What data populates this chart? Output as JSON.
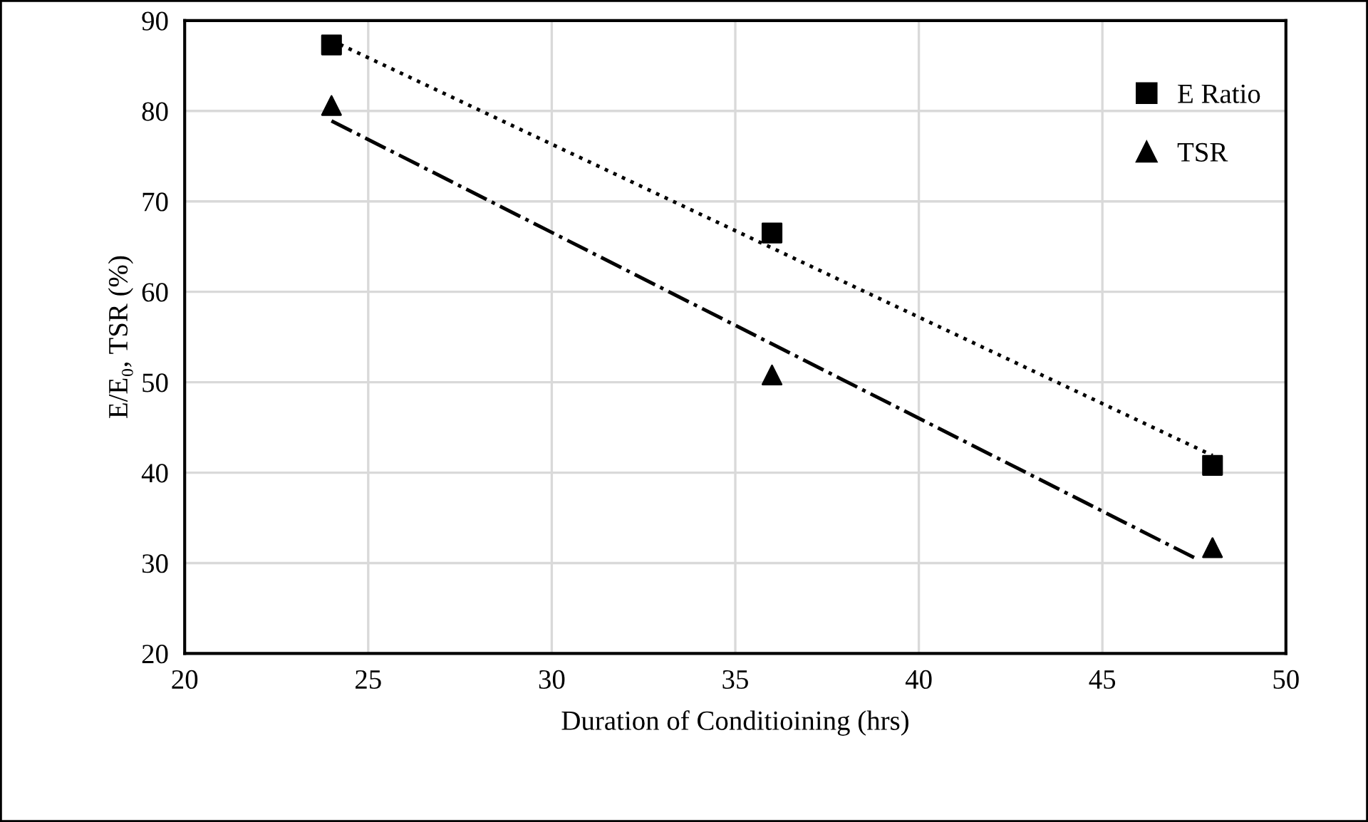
{
  "chart_data": {
    "type": "scatter",
    "xlabel": "Duration of Conditioining (hrs)",
    "ylabel": "E/E₀, TSR (%)",
    "xlim": [
      20,
      50
    ],
    "xticks": [
      20,
      25,
      30,
      35,
      40,
      45,
      50
    ],
    "ylim": [
      20,
      90
    ],
    "yticks": [
      20,
      30,
      40,
      50,
      60,
      70,
      80,
      90
    ],
    "grid": true,
    "legend": "top right",
    "series": [
      {
        "name": "E Ratio",
        "marker": "square",
        "color": "#000000",
        "x": [
          24,
          36,
          48
        ],
        "values": [
          87.3,
          66.5,
          40.8
        ]
      },
      {
        "name": "TSR",
        "marker": "triangle",
        "color": "#000000",
        "x": [
          24,
          36,
          48
        ],
        "values": [
          80.6,
          50.8,
          31.7
        ]
      },
      {
        "type": "line",
        "marker": "none",
        "line_style": "dotted",
        "color": "#000000",
        "x": [
          24,
          48
        ],
        "values": [
          87.8,
          41.9
        ]
      },
      {
        "type": "line",
        "marker": "none",
        "line_style": "dashed",
        "color": "#000000",
        "x": [
          24,
          47.5
        ],
        "values": [
          78.9,
          30.6
        ]
      }
    ]
  }
}
